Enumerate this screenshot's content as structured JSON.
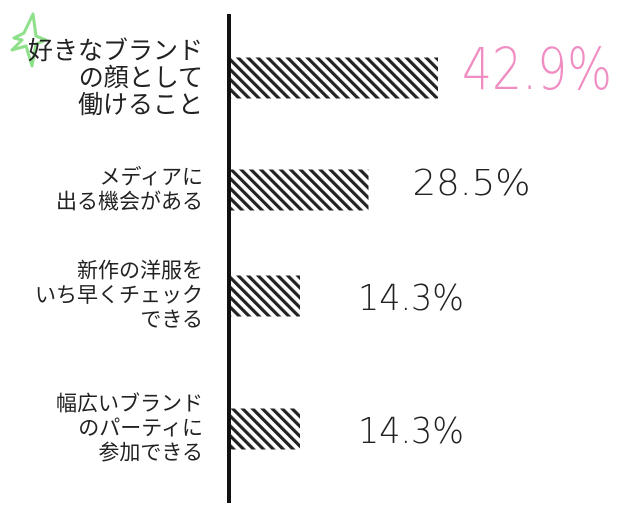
{
  "chart_data": {
    "type": "bar",
    "orientation": "horizontal",
    "categories": [
      [
        "好きなブランド",
        "の顔として",
        "働けること"
      ],
      [
        "メディアに",
        "出る機会がある"
      ],
      [
        "新作の洋服を",
        "いち早くチェック",
        "できる"
      ],
      [
        "幅広いブランド",
        "のパーティに",
        "参加できる"
      ]
    ],
    "values": [
      42.9,
      28.5,
      14.3,
      14.3
    ],
    "value_labels": [
      "42.9%",
      "28.5%",
      "14.3%",
      "14.3%"
    ],
    "highlight_index": 0,
    "colors": {
      "highlight_label": "#f08ec4",
      "label": "#222222",
      "bar_stripe": "#222222",
      "axis": "#111111",
      "star": "#8fe08a"
    },
    "icon": "star-icon"
  }
}
